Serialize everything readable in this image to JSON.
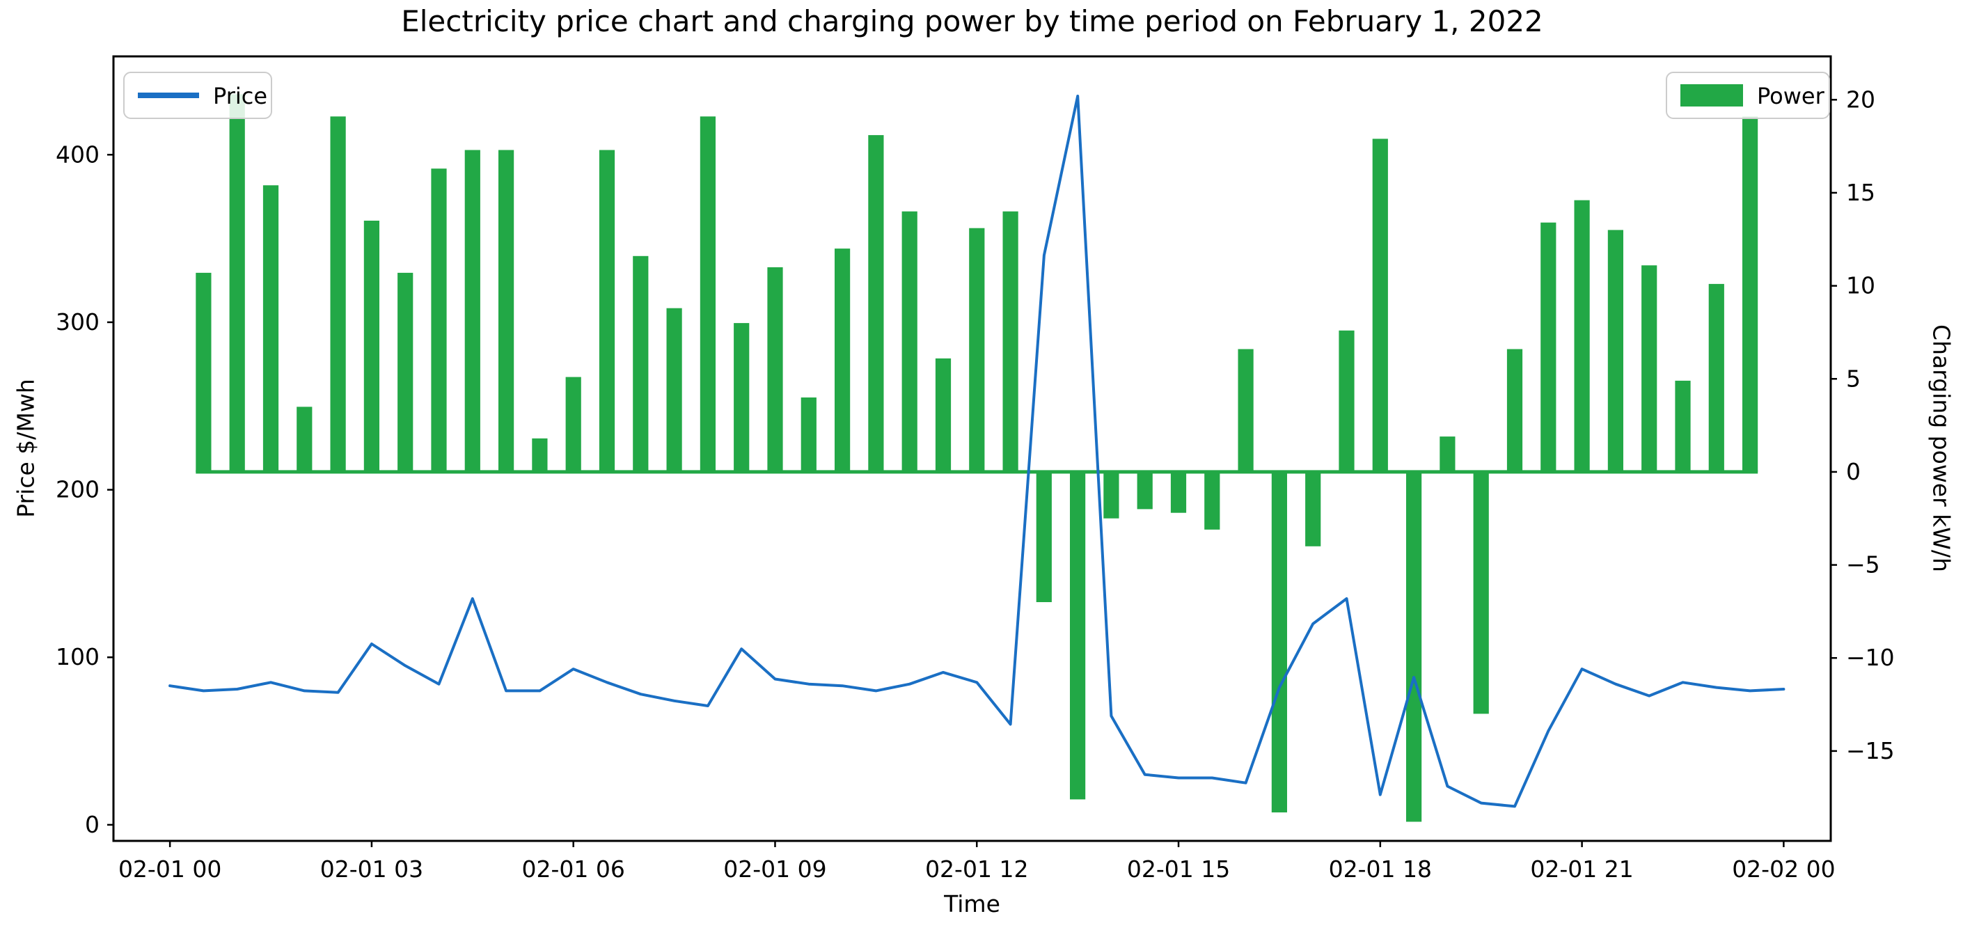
{
  "chart_data": {
    "type": "bar+line combo (dual y-axis)",
    "title": "Electricity price chart and charging power by time period on February 1, 2022",
    "xlabel": "Time",
    "ylabel_left": "Price $/Mwh",
    "ylabel_right": "Charging power kW/h",
    "x_tick_labels": [
      "02-01 00",
      "02-01 03",
      "02-01 06",
      "02-01 09",
      "02-01 12",
      "02-01 15",
      "02-01 18",
      "02-01 21",
      "02-02 00"
    ],
    "x_tick_hours": [
      0,
      3,
      6,
      9,
      12,
      15,
      18,
      21,
      24
    ],
    "left_tick_values": [
      0,
      100,
      200,
      300,
      400
    ],
    "right_tick_values": [
      -15,
      -10,
      -5,
      0,
      5,
      10,
      15,
      20
    ],
    "xlim_hours": [
      -0.84,
      24.7
    ],
    "ylim_left": [
      -9.6,
      458.7
    ],
    "ylim_right": [
      -19.83,
      22.33
    ],
    "grid": "off",
    "legend_position": [
      "upper left",
      "upper right"
    ],
    "series": [
      {
        "name": "Price",
        "type": "line",
        "axis": "left",
        "color": "#1a6fc4",
        "x_hours": [
          0,
          0.5,
          1,
          1.5,
          2,
          2.5,
          3,
          3.5,
          4,
          4.5,
          5,
          5.5,
          6,
          6.5,
          7,
          7.5,
          8,
          8.5,
          9,
          9.5,
          10,
          10.5,
          11,
          11.5,
          12,
          12.5,
          13,
          13.5,
          14,
          14.5,
          15,
          15.5,
          16,
          16.5,
          17,
          17.5,
          18,
          18.5,
          19,
          19.5,
          20,
          20.5,
          21,
          21.5,
          22,
          22.5,
          23,
          23.5,
          24
        ],
        "values": [
          83,
          80,
          81,
          85,
          80,
          79,
          108,
          95,
          84,
          135,
          80,
          80,
          93,
          85,
          78,
          74,
          71,
          105,
          87,
          84,
          83,
          80,
          84,
          91,
          85,
          60,
          340,
          435,
          65,
          30,
          28,
          28,
          25,
          82,
          120,
          135,
          18,
          88,
          23,
          13,
          11,
          56,
          93,
          84,
          77,
          85,
          82,
          80,
          81
        ]
      },
      {
        "name": "Power",
        "type": "bar",
        "axis": "right",
        "color": "#22a846",
        "bar_width_hours": 0.23,
        "x_hours": [
          0.5,
          1,
          1.5,
          2,
          2.5,
          3,
          3.5,
          4,
          4.5,
          5,
          5.5,
          6,
          6.5,
          7,
          7.5,
          8,
          8.5,
          9,
          9.5,
          10,
          10.5,
          11,
          11.5,
          12,
          12.5,
          13,
          13.5,
          14,
          14.5,
          15,
          15.5,
          16,
          16.5,
          17,
          17.5,
          18,
          18.5,
          19,
          19.5,
          20,
          20.5,
          21,
          21.5,
          22,
          22.5,
          23,
          23.5
        ],
        "values": [
          10.7,
          20.3,
          15.4,
          3.5,
          19.1,
          13.5,
          10.7,
          16.3,
          17.3,
          17.3,
          1.8,
          5.1,
          17.3,
          11.6,
          8.8,
          19.1,
          8.0,
          11.0,
          4.0,
          12.0,
          18.1,
          14.0,
          6.1,
          13.1,
          14.0,
          -7.0,
          -17.6,
          -2.5,
          -2.0,
          -2.2,
          -3.1,
          6.6,
          -18.3,
          -4.0,
          7.6,
          17.9,
          -18.8,
          1.9,
          -13.0,
          6.6,
          13.4,
          14.6,
          13.0,
          11.1,
          4.9,
          10.1,
          19.1
        ]
      }
    ],
    "legend": [
      {
        "label": "Price",
        "swatch": "line",
        "color": "#1a6fc4"
      },
      {
        "label": "Power",
        "swatch": "rect",
        "color": "#22a846"
      }
    ],
    "colors": {
      "price_line": "#1a6fc4",
      "power_bar": "#22a846",
      "axes": "#000000",
      "legend_border": "#cccccc",
      "background": "#ffffff"
    }
  }
}
